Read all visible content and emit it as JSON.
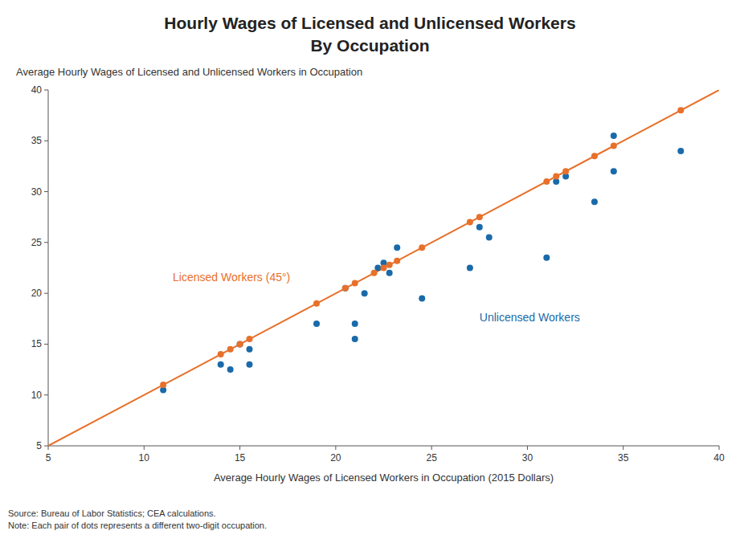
{
  "chart_data": {
    "type": "scatter",
    "title": [
      "Hourly Wages of Licensed and Unlicensed Workers",
      "By Occupation"
    ],
    "subtitle": "Average Hourly Wages of Licensed and Unlicensed Workers in Occupation",
    "x_label": "Average Hourly Wages of Licensed Workers in Occupation (2015 Dollars)",
    "source": [
      "Source: Bureau of Labor Statistics; CEA calculations.",
      "Note: Each pair of dots represents a different two-digit occupation."
    ],
    "xlim": [
      5,
      40
    ],
    "ylim": [
      5,
      40
    ],
    "xticks": [
      5,
      10,
      15,
      20,
      25,
      30,
      35,
      40
    ],
    "yticks": [
      5,
      10,
      15,
      20,
      25,
      30,
      35,
      40
    ],
    "grid": false,
    "series": [
      {
        "type": "line",
        "color": "#E8702A",
        "x": [
          5,
          40
        ],
        "values": [
          5,
          40
        ]
      },
      {
        "type": "scatter",
        "color": "#E8702A",
        "x": [
          11.0,
          14.0,
          14.5,
          15.0,
          15.5,
          19.0,
          20.5,
          21.0,
          22.0,
          22.5,
          22.8,
          23.2,
          24.5,
          27.0,
          27.5,
          31.0,
          31.5,
          32.0,
          33.5,
          34.5,
          38.0
        ],
        "values": [
          11.0,
          14.0,
          14.5,
          15.0,
          15.5,
          19.0,
          20.5,
          21.0,
          22.0,
          22.5,
          22.8,
          23.2,
          24.5,
          27.0,
          27.5,
          31.0,
          31.5,
          32.0,
          33.5,
          34.5,
          38.0
        ]
      },
      {
        "type": "scatter",
        "color": "#1A6AAA",
        "x": [
          11.0,
          14.0,
          14.5,
          15.0,
          15.5,
          15.5,
          19.0,
          20.5,
          21.0,
          21.0,
          21.5,
          22.2,
          22.5,
          22.8,
          23.2,
          24.5,
          27.0,
          27.5,
          28.0,
          31.0,
          31.5,
          32.0,
          33.5,
          34.5,
          34.5,
          38.0
        ],
        "values": [
          10.5,
          13.0,
          12.5,
          15.0,
          14.5,
          13.0,
          17.0,
          20.5,
          17.0,
          15.5,
          20.0,
          22.5,
          23.0,
          22.0,
          24.5,
          19.5,
          22.5,
          26.5,
          25.5,
          23.5,
          31.0,
          31.5,
          29.0,
          35.5,
          32.0,
          34.0
        ]
      }
    ],
    "annotations": [
      {
        "text": "Licensed Workers (45°)",
        "x": 11.5,
        "y": 21.5,
        "color": "#E8702A"
      },
      {
        "text": "Unlicensed Workers",
        "x": 27.5,
        "y": 17.5,
        "color": "#1A6AAA"
      }
    ]
  }
}
